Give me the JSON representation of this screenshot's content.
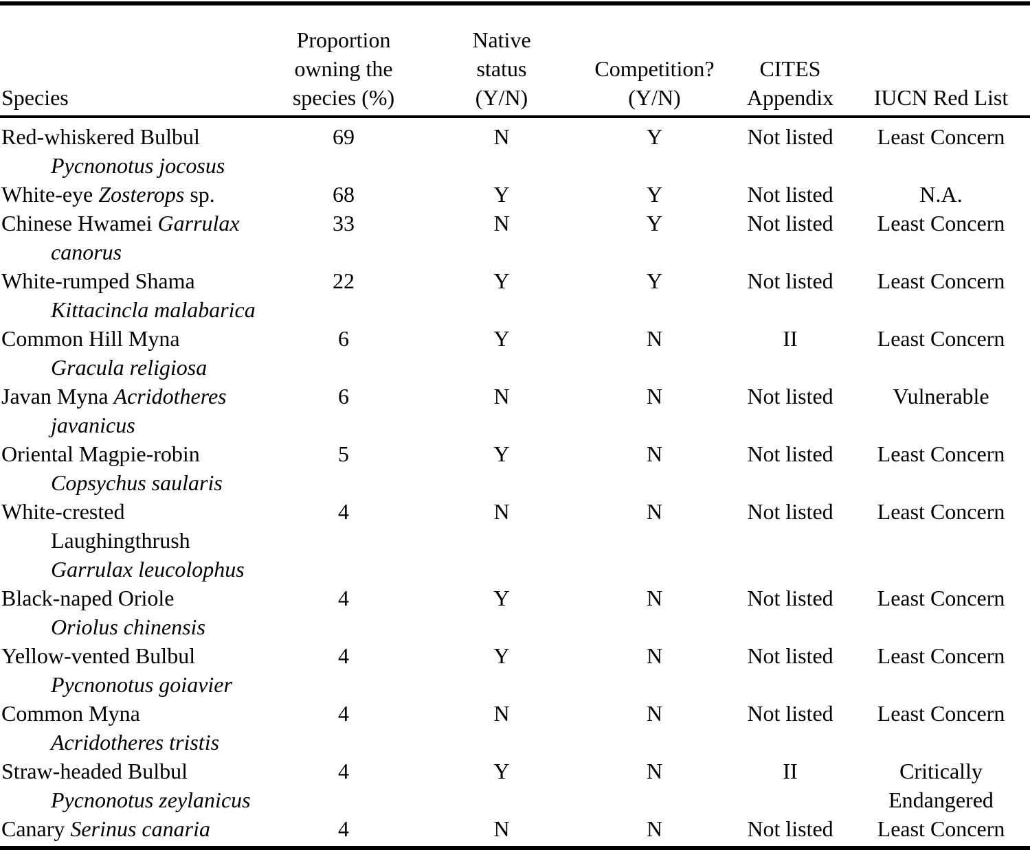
{
  "colors": {
    "background": "#ffffff",
    "text": "#000000",
    "rule": "#000000"
  },
  "table": {
    "header": {
      "species": "Species",
      "proportion": "Proportion\nowning the\nspecies (%)",
      "native": "Native\nstatus\n(Y/N)",
      "competition": "Competition?\n(Y/N)",
      "cites": "CITES\nAppendix",
      "iucn": "IUCN Red List"
    },
    "rows": [
      {
        "species_lines": [
          {
            "indent": false,
            "segments": [
              {
                "text": "Red-whiskered Bulbul",
                "italic": false
              }
            ]
          },
          {
            "indent": true,
            "segments": [
              {
                "text": "Pycnonotus jocosus",
                "italic": true
              }
            ]
          }
        ],
        "proportion": "69",
        "native_status": "N",
        "competition": "Y",
        "cites_appendix": "Not listed",
        "iucn_red_list": "Least Concern"
      },
      {
        "species_lines": [
          {
            "indent": false,
            "segments": [
              {
                "text": "White-eye ",
                "italic": false
              },
              {
                "text": "Zosterops",
                "italic": true
              },
              {
                "text": " sp.",
                "italic": false
              }
            ]
          }
        ],
        "proportion": "68",
        "native_status": "Y",
        "competition": "Y",
        "cites_appendix": "Not listed",
        "iucn_red_list": "N.A."
      },
      {
        "species_lines": [
          {
            "indent": false,
            "segments": [
              {
                "text": "Chinese Hwamei ",
                "italic": false
              },
              {
                "text": "Garrulax",
                "italic": true
              }
            ]
          },
          {
            "indent": true,
            "segments": [
              {
                "text": "canorus",
                "italic": true
              }
            ]
          }
        ],
        "proportion": "33",
        "native_status": "N",
        "competition": "Y",
        "cites_appendix": "Not listed",
        "iucn_red_list": "Least Concern"
      },
      {
        "species_lines": [
          {
            "indent": false,
            "segments": [
              {
                "text": "White-rumped Shama",
                "italic": false
              }
            ]
          },
          {
            "indent": true,
            "segments": [
              {
                "text": "Kittacincla malabarica",
                "italic": true
              }
            ]
          }
        ],
        "proportion": "22",
        "native_status": "Y",
        "competition": "Y",
        "cites_appendix": "Not listed",
        "iucn_red_list": "Least Concern"
      },
      {
        "species_lines": [
          {
            "indent": false,
            "segments": [
              {
                "text": "Common Hill Myna",
                "italic": false
              }
            ]
          },
          {
            "indent": true,
            "segments": [
              {
                "text": "Gracula religiosa",
                "italic": true
              }
            ]
          }
        ],
        "proportion": "6",
        "native_status": "Y",
        "competition": "N",
        "cites_appendix": "II",
        "iucn_red_list": "Least Concern"
      },
      {
        "species_lines": [
          {
            "indent": false,
            "segments": [
              {
                "text": "Javan Myna ",
                "italic": false
              },
              {
                "text": "Acridotheres",
                "italic": true
              }
            ]
          },
          {
            "indent": true,
            "segments": [
              {
                "text": "javanicus",
                "italic": true
              }
            ]
          }
        ],
        "proportion": "6",
        "native_status": "N",
        "competition": "N",
        "cites_appendix": "Not listed",
        "iucn_red_list": "Vulnerable"
      },
      {
        "species_lines": [
          {
            "indent": false,
            "segments": [
              {
                "text": "Oriental Magpie-robin",
                "italic": false
              }
            ]
          },
          {
            "indent": true,
            "segments": [
              {
                "text": "Copsychus saularis",
                "italic": true
              }
            ]
          }
        ],
        "proportion": "5",
        "native_status": "Y",
        "competition": "N",
        "cites_appendix": "Not listed",
        "iucn_red_list": "Least Concern"
      },
      {
        "species_lines": [
          {
            "indent": false,
            "segments": [
              {
                "text": "White-crested",
                "italic": false
              }
            ]
          },
          {
            "indent": true,
            "segments": [
              {
                "text": "Laughingthrush",
                "italic": false
              }
            ]
          },
          {
            "indent": true,
            "segments": [
              {
                "text": "Garrulax leucolophus",
                "italic": true
              }
            ]
          }
        ],
        "proportion": "4",
        "native_status": "N",
        "competition": "N",
        "cites_appendix": "Not listed",
        "iucn_red_list": "Least Concern"
      },
      {
        "species_lines": [
          {
            "indent": false,
            "segments": [
              {
                "text": "Black-naped Oriole",
                "italic": false
              }
            ]
          },
          {
            "indent": true,
            "segments": [
              {
                "text": "Oriolus chinensis",
                "italic": true
              }
            ]
          }
        ],
        "proportion": "4",
        "native_status": "Y",
        "competition": "N",
        "cites_appendix": "Not listed",
        "iucn_red_list": "Least Concern"
      },
      {
        "species_lines": [
          {
            "indent": false,
            "segments": [
              {
                "text": "Yellow-vented Bulbul",
                "italic": false
              }
            ]
          },
          {
            "indent": true,
            "segments": [
              {
                "text": "Pycnonotus goiavier",
                "italic": true
              }
            ]
          }
        ],
        "proportion": "4",
        "native_status": "Y",
        "competition": "N",
        "cites_appendix": "Not listed",
        "iucn_red_list": "Least Concern"
      },
      {
        "species_lines": [
          {
            "indent": false,
            "segments": [
              {
                "text": "Common Myna",
                "italic": false
              }
            ]
          },
          {
            "indent": true,
            "segments": [
              {
                "text": "Acridotheres tristis",
                "italic": true
              }
            ]
          }
        ],
        "proportion": "4",
        "native_status": "N",
        "competition": "N",
        "cites_appendix": "Not listed",
        "iucn_red_list": "Least Concern"
      },
      {
        "species_lines": [
          {
            "indent": false,
            "segments": [
              {
                "text": "Straw-headed Bulbul",
                "italic": false
              }
            ]
          },
          {
            "indent": true,
            "segments": [
              {
                "text": "Pycnonotus zeylanicus",
                "italic": true
              }
            ]
          }
        ],
        "proportion": "4",
        "native_status": "Y",
        "competition": "N",
        "cites_appendix": "II",
        "iucn_red_list": "Critically\nEndangered"
      },
      {
        "species_lines": [
          {
            "indent": false,
            "segments": [
              {
                "text": "Canary ",
                "italic": false
              },
              {
                "text": "Serinus canaria",
                "italic": true
              }
            ]
          }
        ],
        "proportion": "4",
        "native_status": "N",
        "competition": "N",
        "cites_appendix": "Not listed",
        "iucn_red_list": "Least Concern"
      }
    ]
  }
}
